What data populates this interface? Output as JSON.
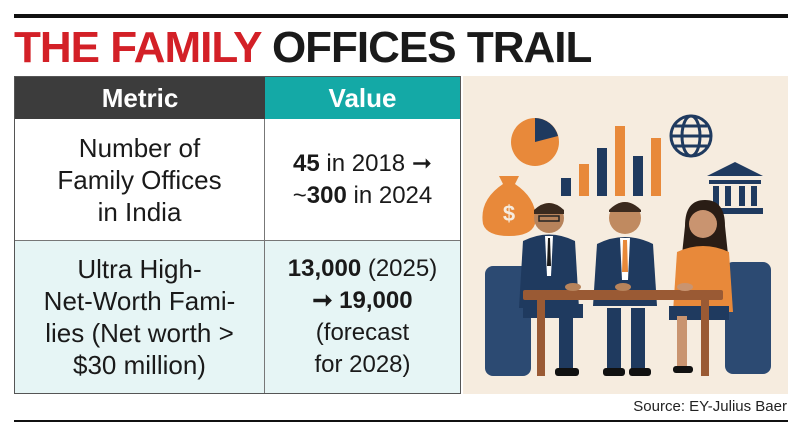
{
  "headline": {
    "part1": "THE FAMILY",
    "part2": "OFFICES TRAIL"
  },
  "table": {
    "headers": [
      "Metric",
      "Value"
    ],
    "rows": [
      {
        "metric": [
          "Number of",
          "Family Offices",
          "in India"
        ],
        "value_line1_bold": "45",
        "value_line1_rest": " in 2018 ➞",
        "value_line2_pre": "~",
        "value_line2_bold": "300",
        "value_line2_rest": " in 2024"
      },
      {
        "metric": [
          "Ultra High-",
          "Net-Worth Fami-",
          "lies (Net worth >",
          "$30 million)"
        ],
        "value_line1_bold": "13,000",
        "value_line1_rest": " (2025)",
        "value_line2_bold": "➞ 19,000",
        "value_line3": "(forecast",
        "value_line4": "for 2028)"
      }
    ]
  },
  "source": "Source: EY-Julius Baer",
  "colors": {
    "headline_red": "#d32027",
    "metric_header": "#3c3c3c",
    "value_header": "#14a9a6",
    "row_tint": "#e6f5f5"
  },
  "illustration": {
    "icons": [
      "pie-chart-icon",
      "bar-chart-icon",
      "globe-icon",
      "money-bag-icon",
      "bank-icon"
    ]
  }
}
